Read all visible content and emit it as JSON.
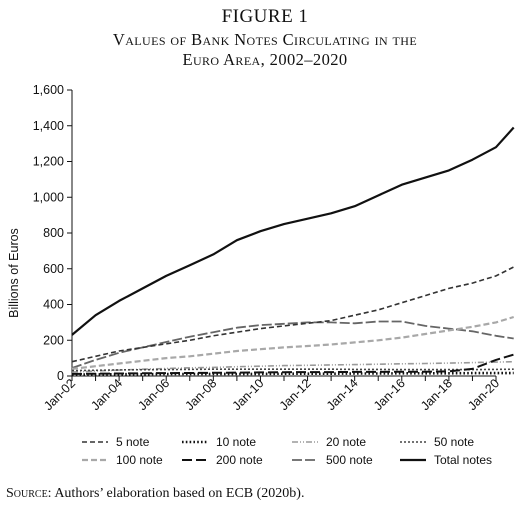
{
  "figure": {
    "label": "FIGURE 1",
    "title_line1": "Values of Bank Notes Circulating in the",
    "title_line2": "Euro Area, 2002–2020",
    "source_label": "Source:",
    "source_text": "Authors’ elaboration based on ECB (2020b)."
  },
  "chart_data": {
    "type": "line",
    "ylabel": "Billions of Euros",
    "xlabel": "",
    "ylim": [
      0,
      1600
    ],
    "yticks": [
      "0",
      "200",
      "400",
      "600",
      "800",
      "1,000",
      "1,200",
      "1,400",
      "1,600"
    ],
    "xticks": [
      "Jan-02",
      "Jan-04",
      "Jan-06",
      "Jan-08",
      "Jan-10",
      "Jan-12",
      "Jan-14",
      "Jan-16",
      "Jan-18",
      "Jan-20"
    ],
    "grid": false,
    "legend_position": "bottom",
    "x": [
      "Jan-02",
      "Jan-03",
      "Jan-04",
      "Jan-05",
      "Jan-06",
      "Jan-07",
      "Jan-08",
      "Jan-09",
      "Jan-10",
      "Jan-11",
      "Jan-12",
      "Jan-13",
      "Jan-14",
      "Jan-15",
      "Jan-16",
      "Jan-17",
      "Jan-18",
      "Jan-19",
      "Jan-20",
      "Oct-20"
    ],
    "series": [
      {
        "name": "5 note",
        "color": "#333333",
        "dash": "5,3",
        "width": 1.6,
        "values": [
          80,
          110,
          140,
          160,
          180,
          200,
          225,
          245,
          265,
          280,
          295,
          310,
          340,
          370,
          410,
          450,
          490,
          520,
          560,
          610
        ]
      },
      {
        "name": "10 note",
        "color": "#111111",
        "dash": "1.6,2.2",
        "width": 2.6,
        "values": [
          8,
          9,
          10,
          10,
          11,
          11,
          12,
          12,
          12,
          13,
          13,
          13,
          14,
          14,
          15,
          15,
          15,
          16,
          16,
          17
        ]
      },
      {
        "name": "20 note",
        "color": "#9a9a9a",
        "dash": "6,2,1,2,1,2",
        "width": 1.6,
        "values": [
          22,
          28,
          33,
          38,
          42,
          46,
          48,
          52,
          55,
          58,
          60,
          62,
          64,
          66,
          68,
          70,
          72,
          75,
          78,
          80
        ]
      },
      {
        "name": "50 note",
        "color": "#444444",
        "dash": "2,2",
        "width": 1.6,
        "values": [
          30,
          32,
          34,
          35,
          36,
          37,
          38,
          38,
          38,
          38,
          38,
          38,
          37,
          37,
          36,
          36,
          36,
          36,
          37,
          38
        ]
      },
      {
        "name": "100 note",
        "color": "#a8a8a8",
        "dash": "6,3",
        "width": 2.2,
        "values": [
          40,
          55,
          70,
          85,
          100,
          110,
          125,
          140,
          150,
          160,
          168,
          176,
          188,
          200,
          215,
          235,
          255,
          275,
          300,
          330
        ]
      },
      {
        "name": "200 note",
        "color": "#111111",
        "dash": "10,4",
        "width": 2.0,
        "values": [
          12,
          13,
          14,
          15,
          16,
          17,
          18,
          19,
          20,
          21,
          22,
          22,
          23,
          23,
          24,
          24,
          26,
          40,
          90,
          120
        ]
      },
      {
        "name": "500 note",
        "color": "#666666",
        "dash": "10,3",
        "width": 1.8,
        "values": [
          45,
          90,
          130,
          160,
          190,
          220,
          245,
          270,
          285,
          292,
          300,
          300,
          295,
          305,
          305,
          280,
          265,
          250,
          225,
          210
        ]
      },
      {
        "name": "Total notes",
        "color": "#111111",
        "dash": "",
        "width": 2.2,
        "values": [
          230,
          340,
          420,
          490,
          560,
          620,
          680,
          760,
          810,
          850,
          880,
          910,
          950,
          1010,
          1070,
          1110,
          1150,
          1210,
          1280,
          1390
        ]
      }
    ]
  }
}
